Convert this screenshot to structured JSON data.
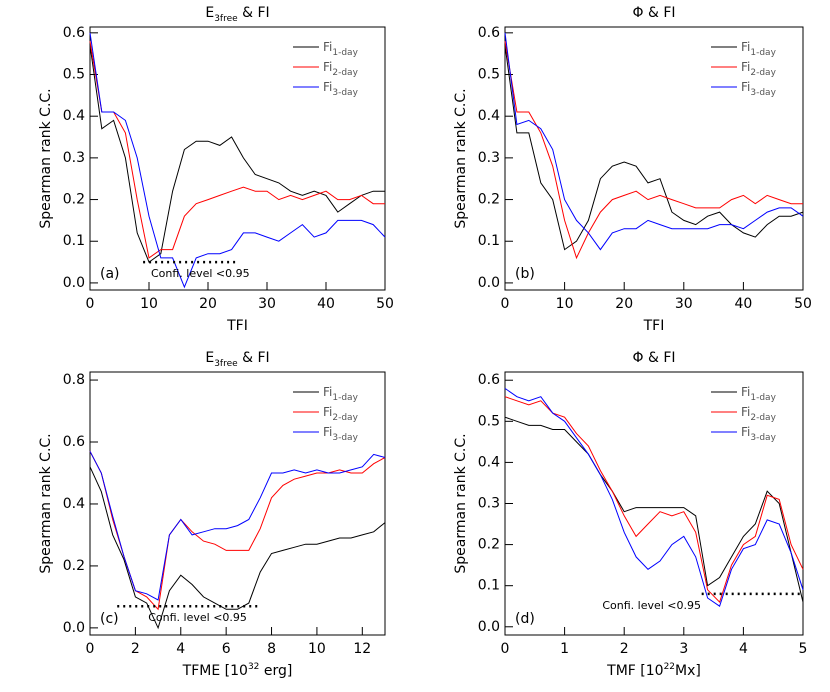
{
  "chart_data": [
    {
      "type": "line",
      "panel_label": "(a)",
      "title": [
        {
          "text": "E"
        },
        {
          "text": "3free",
          "sub": true
        },
        {
          "text": "  &  FI"
        }
      ],
      "xlabel": [
        {
          "text": "TFI"
        }
      ],
      "ylabel": "Spearman rank C.C.",
      "x": [
        0,
        2,
        4,
        6,
        8,
        10,
        12,
        14,
        16,
        18,
        20,
        22,
        24,
        26,
        28,
        30,
        32,
        34,
        36,
        38,
        40,
        42,
        44,
        46,
        48,
        50
      ],
      "series": [
        {
          "name": [
            {
              "text": "Fi"
            },
            {
              "text": "1-day",
              "sub": true
            }
          ],
          "color": "#000000",
          "values": [
            0.57,
            0.37,
            0.39,
            0.3,
            0.12,
            0.05,
            0.07,
            0.22,
            0.32,
            0.34,
            0.34,
            0.33,
            0.35,
            0.3,
            0.26,
            0.25,
            0.24,
            0.22,
            0.21,
            0.22,
            0.21,
            0.17,
            0.19,
            0.21,
            0.22,
            0.22
          ]
        },
        {
          "name": [
            {
              "text": "Fi"
            },
            {
              "text": "2-day",
              "sub": true
            }
          ],
          "color": "#ff0000",
          "values": [
            0.58,
            0.41,
            0.41,
            0.36,
            0.2,
            0.06,
            0.08,
            0.08,
            0.16,
            0.19,
            0.2,
            0.21,
            0.22,
            0.23,
            0.22,
            0.22,
            0.2,
            0.21,
            0.2,
            0.21,
            0.22,
            0.2,
            0.2,
            0.21,
            0.19,
            0.19
          ]
        },
        {
          "name": [
            {
              "text": "Fi"
            },
            {
              "text": "3-day",
              "sub": true
            }
          ],
          "color": "#0000ff",
          "values": [
            0.6,
            0.41,
            0.41,
            0.39,
            0.3,
            0.16,
            0.06,
            0.06,
            -0.01,
            0.06,
            0.07,
            0.07,
            0.08,
            0.12,
            0.12,
            0.11,
            0.1,
            0.12,
            0.14,
            0.11,
            0.12,
            0.15,
            0.15,
            0.15,
            0.14,
            0.11
          ]
        }
      ],
      "threshold": {
        "value": 0.05,
        "x": [
          9,
          25
        ],
        "label": "Confi. level <0.95"
      },
      "xlim": [
        0,
        50
      ],
      "xticks": [
        0,
        10,
        20,
        30,
        40,
        50
      ],
      "ylim": [
        -0.017,
        0.614
      ],
      "yticks": [
        {
          "value": 0,
          "label": "0.0"
        },
        0.1,
        0.2,
        0.3,
        0.4,
        0.5,
        0.6
      ]
    },
    {
      "type": "line",
      "panel_label": "(b)",
      "title": [
        {
          "text": "Φ  &  FI"
        }
      ],
      "xlabel": [
        {
          "text": "TFI"
        }
      ],
      "ylabel": "Spearman rank C.C.",
      "x": [
        0,
        2,
        4,
        6,
        8,
        10,
        12,
        14,
        16,
        18,
        20,
        22,
        24,
        26,
        28,
        30,
        32,
        34,
        36,
        38,
        40,
        42,
        44,
        46,
        48,
        50
      ],
      "series": [
        {
          "name": [
            {
              "text": "Fi"
            },
            {
              "text": "1-day",
              "sub": true
            }
          ],
          "color": "#000000",
          "values": [
            0.57,
            0.36,
            0.36,
            0.24,
            0.2,
            0.08,
            0.1,
            0.15,
            0.25,
            0.28,
            0.29,
            0.28,
            0.24,
            0.25,
            0.17,
            0.15,
            0.14,
            0.16,
            0.17,
            0.14,
            0.12,
            0.11,
            0.14,
            0.16,
            0.16,
            0.17
          ]
        },
        {
          "name": [
            {
              "text": "Fi"
            },
            {
              "text": "2-day",
              "sub": true
            }
          ],
          "color": "#ff0000",
          "values": [
            0.58,
            0.41,
            0.41,
            0.36,
            0.28,
            0.15,
            0.06,
            0.12,
            0.17,
            0.2,
            0.21,
            0.22,
            0.2,
            0.21,
            0.2,
            0.19,
            0.18,
            0.18,
            0.18,
            0.2,
            0.21,
            0.19,
            0.21,
            0.2,
            0.19,
            0.19
          ]
        },
        {
          "name": [
            {
              "text": "Fi"
            },
            {
              "text": "3-day",
              "sub": true
            }
          ],
          "color": "#0000ff",
          "values": [
            0.6,
            0.38,
            0.39,
            0.37,
            0.32,
            0.2,
            0.15,
            0.12,
            0.08,
            0.12,
            0.13,
            0.13,
            0.15,
            0.14,
            0.13,
            0.13,
            0.13,
            0.13,
            0.14,
            0.14,
            0.13,
            0.15,
            0.17,
            0.18,
            0.18,
            0.16
          ]
        }
      ],
      "xlim": [
        0,
        50
      ],
      "xticks": [
        0,
        10,
        20,
        30,
        40,
        50
      ],
      "ylim": [
        -0.017,
        0.614
      ],
      "yticks": [
        {
          "value": 0,
          "label": "0.0"
        },
        0.1,
        0.2,
        0.3,
        0.4,
        0.5,
        0.6
      ]
    },
    {
      "type": "line",
      "panel_label": "(c)",
      "title": [
        {
          "text": "E"
        },
        {
          "text": "3free",
          "sub": true
        },
        {
          "text": "  &  FI"
        }
      ],
      "xlabel": [
        {
          "text": "TFME [10"
        },
        {
          "text": "32",
          "sup": true
        },
        {
          "text": " erg]"
        }
      ],
      "ylabel": "Spearman rank C.C.",
      "x": [
        0,
        0.5,
        1,
        1.5,
        2,
        2.5,
        3,
        3.5,
        4,
        4.5,
        5,
        5.5,
        6,
        6.5,
        7,
        7.5,
        8,
        8.5,
        9,
        9.5,
        10,
        10.5,
        11,
        11.5,
        12,
        12.5,
        13
      ],
      "series": [
        {
          "name": [
            {
              "text": "Fi"
            },
            {
              "text": "1-day",
              "sub": true
            }
          ],
          "color": "#000000",
          "values": [
            0.52,
            0.44,
            0.3,
            0.22,
            0.1,
            0.08,
            0.0,
            0.12,
            0.17,
            0.14,
            0.1,
            0.08,
            0.06,
            0.06,
            0.08,
            0.18,
            0.24,
            0.25,
            0.26,
            0.27,
            0.27,
            0.28,
            0.29,
            0.29,
            0.3,
            0.31,
            0.34
          ]
        },
        {
          "name": [
            {
              "text": "Fi"
            },
            {
              "text": "2-day",
              "sub": true
            }
          ],
          "color": "#ff0000",
          "values": [
            0.57,
            0.5,
            0.35,
            0.23,
            0.12,
            0.1,
            0.06,
            0.3,
            0.35,
            0.31,
            0.28,
            0.27,
            0.25,
            0.25,
            0.25,
            0.32,
            0.42,
            0.46,
            0.48,
            0.49,
            0.5,
            0.5,
            0.51,
            0.5,
            0.5,
            0.53,
            0.55
          ]
        },
        {
          "name": [
            {
              "text": "Fi"
            },
            {
              "text": "3-day",
              "sub": true
            }
          ],
          "color": "#0000ff",
          "values": [
            0.57,
            0.5,
            0.36,
            0.23,
            0.12,
            0.11,
            0.09,
            0.3,
            0.35,
            0.3,
            0.31,
            0.32,
            0.32,
            0.33,
            0.35,
            0.42,
            0.5,
            0.5,
            0.51,
            0.5,
            0.51,
            0.5,
            0.5,
            0.51,
            0.52,
            0.56,
            0.55
          ]
        }
      ],
      "threshold": {
        "value": 0.07,
        "x": [
          1.2,
          7.4
        ],
        "label": "Confi. level <0.95"
      },
      "xlim": [
        0,
        13
      ],
      "xticks": [
        0,
        2,
        4,
        6,
        8,
        10,
        12
      ],
      "ylim": [
        -0.023,
        0.826
      ],
      "yticks": [
        {
          "value": 0,
          "label": "0.0"
        },
        0.2,
        0.4,
        0.6,
        0.8
      ]
    },
    {
      "type": "line",
      "panel_label": "(d)",
      "title": [
        {
          "text": "Φ  &  FI"
        }
      ],
      "xlabel": [
        {
          "text": "TMF [10"
        },
        {
          "text": "22",
          "sup": true
        },
        {
          "text": "Mx]"
        }
      ],
      "ylabel": "Spearman rank C.C.",
      "x": [
        0,
        0.2,
        0.4,
        0.6,
        0.8,
        1,
        1.2,
        1.4,
        1.6,
        1.8,
        2,
        2.2,
        2.4,
        2.6,
        2.8,
        3,
        3.2,
        3.4,
        3.6,
        3.8,
        4,
        4.2,
        4.4,
        4.6,
        4.8,
        5
      ],
      "series": [
        {
          "name": [
            {
              "text": "Fi"
            },
            {
              "text": "1-day",
              "sub": true
            }
          ],
          "color": "#000000",
          "values": [
            0.51,
            0.5,
            0.49,
            0.49,
            0.48,
            0.48,
            0.45,
            0.42,
            0.37,
            0.33,
            0.28,
            0.29,
            0.29,
            0.29,
            0.29,
            0.29,
            0.27,
            0.1,
            0.12,
            0.17,
            0.22,
            0.25,
            0.33,
            0.3,
            0.18,
            0.06
          ]
        },
        {
          "name": [
            {
              "text": "Fi"
            },
            {
              "text": "2-day",
              "sub": true
            }
          ],
          "color": "#ff0000",
          "values": [
            0.56,
            0.55,
            0.54,
            0.55,
            0.52,
            0.51,
            0.47,
            0.44,
            0.38,
            0.33,
            0.27,
            0.22,
            0.25,
            0.28,
            0.27,
            0.28,
            0.23,
            0.09,
            0.06,
            0.15,
            0.2,
            0.22,
            0.32,
            0.31,
            0.2,
            0.14
          ]
        },
        {
          "name": [
            {
              "text": "Fi"
            },
            {
              "text": "3-day",
              "sub": true
            }
          ],
          "color": "#0000ff",
          "values": [
            0.58,
            0.56,
            0.55,
            0.56,
            0.52,
            0.5,
            0.46,
            0.42,
            0.37,
            0.31,
            0.23,
            0.17,
            0.14,
            0.16,
            0.2,
            0.22,
            0.17,
            0.07,
            0.05,
            0.14,
            0.19,
            0.2,
            0.26,
            0.25,
            0.18,
            0.09
          ]
        }
      ],
      "threshold": {
        "value": 0.08,
        "x": [
          3.3,
          5
        ],
        "label": "Confi. level <0.95"
      },
      "xlim": [
        0,
        5
      ],
      "xticks": [
        0,
        1,
        2,
        3,
        4,
        5
      ],
      "ylim": [
        -0.02,
        0.62
      ],
      "yticks": [
        {
          "value": 0,
          "label": "0.0"
        },
        0.1,
        0.2,
        0.3,
        0.4,
        0.5,
        0.6
      ]
    }
  ]
}
